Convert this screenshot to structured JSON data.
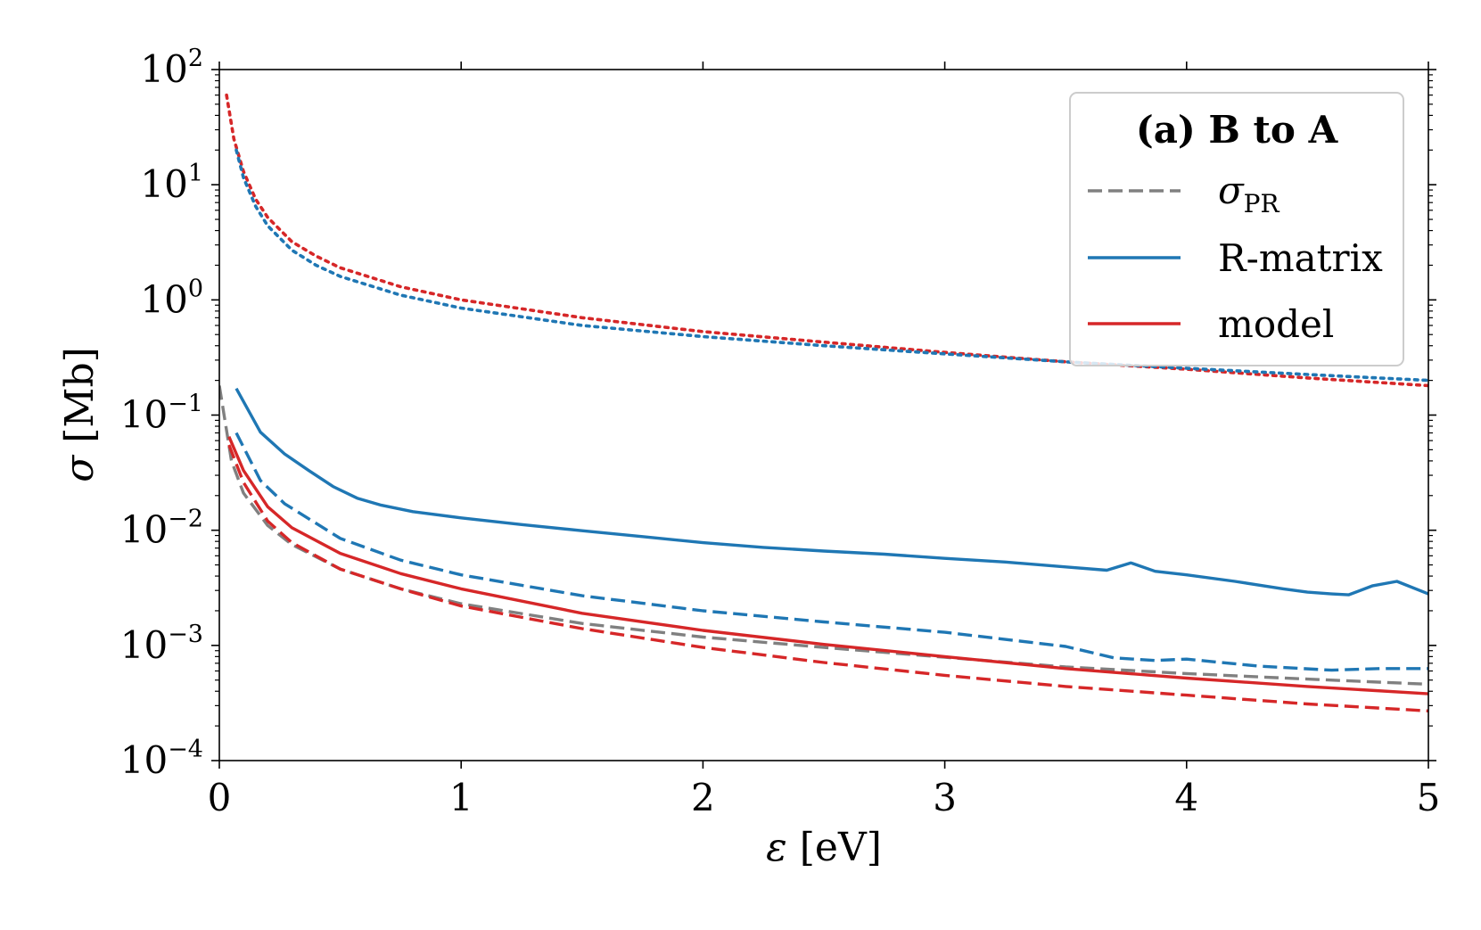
{
  "chart_data": {
    "type": "line",
    "title": "",
    "yscale": "log",
    "xlabel": "ε [eV]",
    "xlabel_symbol": "ε",
    "xlabel_unit": "[eV]",
    "ylabel": "σ [Mb]",
    "ylabel_symbol": "σ",
    "ylabel_unit": "[Mb]",
    "xlim": [
      0,
      5
    ],
    "ylim_exp": [
      -4,
      2
    ],
    "x_ticks": [
      {
        "value": 0,
        "label": "0"
      },
      {
        "value": 1,
        "label": "1"
      },
      {
        "value": 2,
        "label": "2"
      },
      {
        "value": 3,
        "label": "3"
      },
      {
        "value": 4,
        "label": "4"
      },
      {
        "value": 5,
        "label": "5"
      }
    ],
    "y_ticks": [
      {
        "exp": 2,
        "base": "10",
        "sup": "2"
      },
      {
        "exp": 1,
        "base": "10",
        "sup": "1"
      },
      {
        "exp": 0,
        "base": "10",
        "sup": "0"
      },
      {
        "exp": -1,
        "base": "10",
        "sup": "−1"
      },
      {
        "exp": -2,
        "base": "10",
        "sup": "−2"
      },
      {
        "exp": -3,
        "base": "10",
        "sup": "−3"
      },
      {
        "exp": -4,
        "base": "10",
        "sup": "−4"
      }
    ],
    "grid": false,
    "legend": {
      "placement": "top-right",
      "title": "(a) B to A",
      "entries": [
        {
          "label": "σ",
          "sub": "PR",
          "color": "#808080",
          "dash": "dashed"
        },
        {
          "label": "R-matrix",
          "sub": "",
          "color": "#1f77b4",
          "dash": "solid"
        },
        {
          "label": "model",
          "sub": "",
          "color": "#d62728",
          "dash": "solid"
        }
      ]
    },
    "series": [
      {
        "name": "σPR",
        "color": "#808080",
        "style": "dashed",
        "x": [
          0,
          0.05,
          0.1,
          0.2,
          0.3,
          0.5,
          0.75,
          1.0,
          1.5,
          2.0,
          2.5,
          3.0,
          3.5,
          4.0,
          4.5,
          5.0
        ],
        "y": [
          0.18,
          0.04,
          0.021,
          0.011,
          0.0075,
          0.0046,
          0.0031,
          0.0023,
          0.00155,
          0.00118,
          0.00096,
          0.00079,
          0.00065,
          0.00057,
          0.00051,
          0.00046
        ]
      },
      {
        "name": "R-matrix",
        "color": "#1f77b4",
        "style": "solid",
        "x": [
          0.07,
          0.17,
          0.27,
          0.37,
          0.47,
          0.57,
          0.67,
          0.8,
          1.0,
          1.25,
          1.5,
          1.75,
          2.0,
          2.25,
          2.5,
          2.75,
          3.0,
          3.25,
          3.5,
          3.67,
          3.77,
          3.87,
          4.0,
          4.2,
          4.4,
          4.5,
          4.6,
          4.67,
          4.77,
          4.87,
          5.0
        ],
        "y": [
          0.17,
          0.071,
          0.046,
          0.033,
          0.024,
          0.019,
          0.0165,
          0.0145,
          0.0128,
          0.0112,
          0.0099,
          0.0088,
          0.0078,
          0.0071,
          0.0066,
          0.0062,
          0.0057,
          0.0053,
          0.0048,
          0.0045,
          0.0052,
          0.0044,
          0.0041,
          0.0036,
          0.0031,
          0.0029,
          0.0028,
          0.00275,
          0.0033,
          0.0036,
          0.0028
        ]
      },
      {
        "name": "R-matrix (dashed)",
        "color": "#1f77b4",
        "style": "dashed",
        "x": [
          0.07,
          0.17,
          0.27,
          0.5,
          0.75,
          1.0,
          1.5,
          2.0,
          2.5,
          3.0,
          3.5,
          3.7,
          3.87,
          4.0,
          4.3,
          4.6,
          4.8,
          5.0
        ],
        "y": [
          0.07,
          0.027,
          0.017,
          0.0085,
          0.0055,
          0.0041,
          0.0027,
          0.002,
          0.0016,
          0.0013,
          0.00098,
          0.00078,
          0.00074,
          0.00076,
          0.00066,
          0.00061,
          0.00063,
          0.00063
        ]
      },
      {
        "name": "model",
        "color": "#d62728",
        "style": "solid",
        "x": [
          0.04,
          0.1,
          0.2,
          0.3,
          0.5,
          0.75,
          1.0,
          1.5,
          2.0,
          2.5,
          3.0,
          3.5,
          4.0,
          4.5,
          5.0
        ],
        "y": [
          0.065,
          0.033,
          0.016,
          0.0105,
          0.0063,
          0.0042,
          0.0031,
          0.0019,
          0.00135,
          0.00102,
          0.0008,
          0.00063,
          0.00052,
          0.00044,
          0.00038
        ]
      },
      {
        "name": "model (dashed)",
        "color": "#d62728",
        "style": "dashed",
        "x": [
          0.04,
          0.1,
          0.2,
          0.3,
          0.5,
          0.75,
          1.0,
          1.5,
          2.0,
          2.5,
          3.0,
          3.5,
          4.0,
          4.5,
          5.0
        ],
        "y": [
          0.055,
          0.026,
          0.012,
          0.0078,
          0.0046,
          0.0031,
          0.0022,
          0.0014,
          0.00096,
          0.00071,
          0.00055,
          0.00044,
          0.00037,
          0.00031,
          0.00027
        ]
      },
      {
        "name": "model (dotted)",
        "color": "#d62728",
        "style": "dotted",
        "x": [
          0.03,
          0.06,
          0.1,
          0.15,
          0.2,
          0.3,
          0.4,
          0.5,
          0.75,
          1.0,
          1.5,
          2.0,
          2.5,
          3.0,
          3.5,
          4.0,
          4.5,
          5.0
        ],
        "y": [
          60,
          25,
          13,
          7.5,
          5.2,
          3.2,
          2.4,
          1.9,
          1.3,
          1.0,
          0.7,
          0.53,
          0.43,
          0.35,
          0.29,
          0.25,
          0.21,
          0.18
        ]
      },
      {
        "name": "R-matrix (dotted)",
        "color": "#1f77b4",
        "style": "dotted",
        "x": [
          0.07,
          0.1,
          0.15,
          0.2,
          0.3,
          0.4,
          0.5,
          0.75,
          1.0,
          1.5,
          2.0,
          2.5,
          3.0,
          3.5,
          4.0,
          4.5,
          5.0
        ],
        "y": [
          20,
          11.5,
          6.5,
          4.4,
          2.7,
          2.0,
          1.6,
          1.1,
          0.85,
          0.6,
          0.48,
          0.4,
          0.34,
          0.29,
          0.255,
          0.225,
          0.2
        ]
      }
    ]
  }
}
